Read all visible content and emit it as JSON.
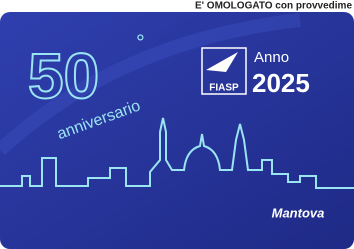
{
  "header": {
    "caption": "E' OMOLOGATO con provvedime"
  },
  "card": {
    "number": "50",
    "degree": "°",
    "subtitle": "anniversario",
    "logo": "FIASP",
    "year_label": "Anno",
    "year": "2025",
    "city": "Mantova"
  }
}
